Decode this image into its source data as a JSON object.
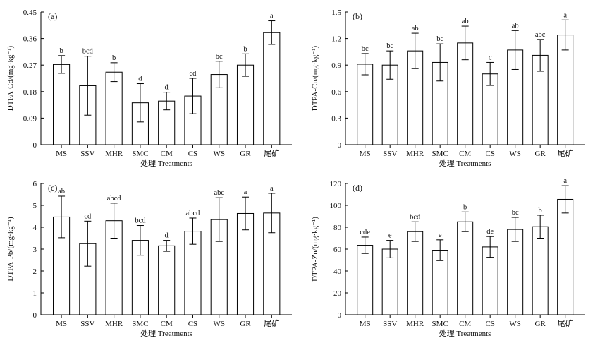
{
  "chart_data": [
    {
      "type": "bar",
      "panel_label": "(a)",
      "ylabel": "DTPA-Cd/(mg·kg⁻¹)",
      "xlabel": "处理 Treatments",
      "ylim": [
        0,
        0.45
      ],
      "yticks": [
        "0",
        "0.09",
        "0.18",
        "0.27",
        "0.36",
        "0.45"
      ],
      "categories": [
        "MS",
        "SSV",
        "MHR",
        "SMC",
        "CM",
        "CS",
        "WS",
        "GR",
        "尾矿"
      ],
      "values": [
        0.272,
        0.2,
        0.246,
        0.142,
        0.148,
        0.165,
        0.238,
        0.27,
        0.38
      ],
      "errors": [
        0.03,
        0.1,
        0.032,
        0.065,
        0.03,
        0.06,
        0.045,
        0.038,
        0.04
      ],
      "significance": [
        "b",
        "bcd",
        "b",
        "d",
        "d",
        "cd",
        "bc",
        "b",
        "a"
      ]
    },
    {
      "type": "bar",
      "panel_label": "(b)",
      "ylabel": "DTPA-Cu/(mg·kg⁻¹)",
      "xlabel": "处理 Treatments",
      "ylim": [
        0,
        1.5
      ],
      "yticks": [
        "0",
        "0.3",
        "0.6",
        "0.9",
        "1.2",
        "1.5"
      ],
      "categories": [
        "MS",
        "SSV",
        "MHR",
        "SMC",
        "CM",
        "CS",
        "WS",
        "GR",
        "尾矿"
      ],
      "values": [
        0.91,
        0.9,
        1.06,
        0.93,
        1.15,
        0.8,
        1.07,
        1.01,
        1.24
      ],
      "errors": [
        0.12,
        0.16,
        0.2,
        0.21,
        0.19,
        0.13,
        0.22,
        0.18,
        0.17
      ],
      "significance": [
        "bc",
        "bc",
        "ab",
        "bc",
        "ab",
        "c",
        "ab",
        "abc",
        "a"
      ]
    },
    {
      "type": "bar",
      "panel_label": "(c)",
      "ylabel": "DTPA-Pb/(mg·kg⁻¹)",
      "xlabel": "处理 Treatments",
      "ylim": [
        0,
        6
      ],
      "yticks": [
        "0",
        "1",
        "2",
        "3",
        "4",
        "5",
        "6"
      ],
      "categories": [
        "MS",
        "SSV",
        "MHR",
        "SMC",
        "CM",
        "CS",
        "WS",
        "GR",
        "尾矿"
      ],
      "values": [
        4.47,
        3.25,
        4.3,
        3.4,
        3.15,
        3.82,
        4.35,
        4.63,
        4.65
      ],
      "errors": [
        0.95,
        1.03,
        0.8,
        0.68,
        0.25,
        0.6,
        1.0,
        0.75,
        0.9
      ],
      "significance": [
        "ab",
        "cd",
        "abcd",
        "bcd",
        "d",
        "abcd",
        "abc",
        "a",
        "a"
      ]
    },
    {
      "type": "bar",
      "panel_label": "(d)",
      "ylabel": "DTPA-Zn/(mg·kg⁻¹)",
      "xlabel": "处理 Treatments",
      "ylim": [
        0,
        120
      ],
      "yticks": [
        "0",
        "20",
        "40",
        "60",
        "80",
        "100",
        "120"
      ],
      "categories": [
        "MS",
        "SSV",
        "MHR",
        "SMC",
        "CM",
        "CS",
        "WS",
        "GR",
        "尾矿"
      ],
      "values": [
        63.5,
        60,
        76,
        59,
        85,
        62,
        78,
        80.5,
        105.5
      ],
      "errors": [
        7.5,
        8,
        9,
        9.5,
        9,
        9.5,
        11,
        10.5,
        12.5
      ],
      "significance": [
        "cde",
        "e",
        "bcd",
        "e",
        "b",
        "de",
        "bc",
        "b",
        "a"
      ]
    }
  ]
}
